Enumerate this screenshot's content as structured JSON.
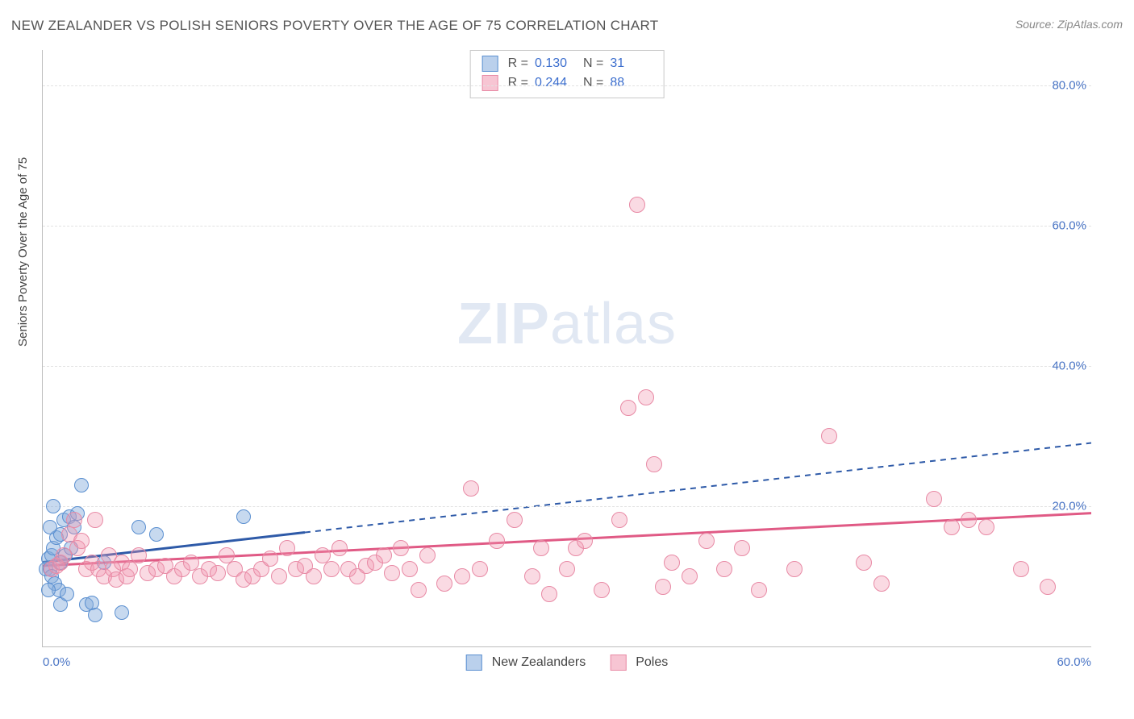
{
  "title": "NEW ZEALANDER VS POLISH SENIORS POVERTY OVER THE AGE OF 75 CORRELATION CHART",
  "source": "Source: ZipAtlas.com",
  "y_axis_label": "Seniors Poverty Over the Age of 75",
  "watermark_bold": "ZIP",
  "watermark_light": "atlas",
  "chart": {
    "type": "scatter",
    "xlim": [
      0,
      60
    ],
    "ylim": [
      0,
      85
    ],
    "background_color": "#ffffff",
    "grid_color": "#e2e2e2",
    "marker_radius_blue": 8,
    "marker_radius_pink": 9,
    "y_ticks": [
      {
        "v": 20,
        "label": "20.0%"
      },
      {
        "v": 40,
        "label": "40.0%"
      },
      {
        "v": 60,
        "label": "60.0%"
      },
      {
        "v": 80,
        "label": "80.0%"
      }
    ],
    "x_ticks": [
      {
        "v": 0,
        "label": "0.0%"
      },
      {
        "v": 60,
        "label": "60.0%"
      }
    ],
    "series": [
      {
        "name": "New Zealanders",
        "color_fill": "rgba(130,170,220,0.45)",
        "color_stroke": "#5a8fd0",
        "line_color": "#2e5aa8",
        "line_solid_until_x": 15,
        "reg": {
          "x1": 0,
          "y1": 12,
          "x2": 60,
          "y2": 29
        },
        "R": "0.130",
        "N": "31",
        "points": [
          [
            0.2,
            11
          ],
          [
            0.3,
            12.5
          ],
          [
            0.5,
            13
          ],
          [
            0.4,
            11
          ],
          [
            0.6,
            14
          ],
          [
            0.8,
            15.5
          ],
          [
            1.0,
            16
          ],
          [
            1.2,
            18
          ],
          [
            1.5,
            18.5
          ],
          [
            0.5,
            10
          ],
          [
            0.7,
            9
          ],
          [
            0.9,
            8
          ],
          [
            1.0,
            12
          ],
          [
            1.3,
            13
          ],
          [
            1.6,
            14
          ],
          [
            2.0,
            19
          ],
          [
            2.2,
            23
          ],
          [
            0.4,
            17
          ],
          [
            0.6,
            20
          ],
          [
            1.8,
            17
          ],
          [
            2.5,
            6
          ],
          [
            2.8,
            6.2
          ],
          [
            3.0,
            4.5
          ],
          [
            4.5,
            4.8
          ],
          [
            3.5,
            12
          ],
          [
            5.5,
            17
          ],
          [
            6.5,
            16
          ],
          [
            11.5,
            18.5
          ],
          [
            1.0,
            6
          ],
          [
            1.4,
            7.5
          ],
          [
            0.3,
            8
          ]
        ]
      },
      {
        "name": "Poles",
        "color_fill": "rgba(240,150,175,0.35)",
        "color_stroke": "#e88aa5",
        "line_color": "#e05a85",
        "line_solid_until_x": 60,
        "reg": {
          "x1": 0,
          "y1": 11.5,
          "x2": 60,
          "y2": 19
        },
        "R": "0.244",
        "N": "88",
        "points": [
          [
            0.5,
            11
          ],
          [
            0.8,
            11.5
          ],
          [
            1.0,
            12
          ],
          [
            1.2,
            13
          ],
          [
            1.5,
            16
          ],
          [
            1.8,
            18
          ],
          [
            2.0,
            14
          ],
          [
            2.2,
            15
          ],
          [
            2.5,
            11
          ],
          [
            2.8,
            12
          ],
          [
            3.0,
            18
          ],
          [
            3.2,
            11
          ],
          [
            3.5,
            10
          ],
          [
            3.8,
            13
          ],
          [
            4.0,
            11
          ],
          [
            4.2,
            9.5
          ],
          [
            4.5,
            12
          ],
          [
            4.8,
            10
          ],
          [
            5.0,
            11
          ],
          [
            5.5,
            13
          ],
          [
            6.0,
            10.5
          ],
          [
            6.5,
            11
          ],
          [
            7.0,
            11.5
          ],
          [
            7.5,
            10
          ],
          [
            8.0,
            11
          ],
          [
            8.5,
            12
          ],
          [
            9.0,
            10
          ],
          [
            9.5,
            11
          ],
          [
            10.0,
            10.5
          ],
          [
            10.5,
            13
          ],
          [
            11.0,
            11
          ],
          [
            11.5,
            9.5
          ],
          [
            12.0,
            10
          ],
          [
            12.5,
            11
          ],
          [
            13.0,
            12.5
          ],
          [
            13.5,
            10
          ],
          [
            14.0,
            14
          ],
          [
            14.5,
            11
          ],
          [
            15.0,
            11.5
          ],
          [
            15.5,
            10
          ],
          [
            16.0,
            13
          ],
          [
            16.5,
            11
          ],
          [
            17.0,
            14
          ],
          [
            17.5,
            11
          ],
          [
            18.0,
            10
          ],
          [
            18.5,
            11.5
          ],
          [
            19.0,
            12
          ],
          [
            19.5,
            13
          ],
          [
            20.0,
            10.5
          ],
          [
            20.5,
            14
          ],
          [
            21.0,
            11
          ],
          [
            21.5,
            8
          ],
          [
            22.0,
            13
          ],
          [
            23.0,
            9
          ],
          [
            24.0,
            10
          ],
          [
            24.5,
            22.5
          ],
          [
            25.0,
            11
          ],
          [
            26.0,
            15
          ],
          [
            27.0,
            18
          ],
          [
            28.0,
            10
          ],
          [
            28.5,
            14
          ],
          [
            29.0,
            7.5
          ],
          [
            30.0,
            11
          ],
          [
            30.5,
            14
          ],
          [
            31.0,
            15
          ],
          [
            32.0,
            8
          ],
          [
            33.0,
            18
          ],
          [
            33.5,
            34
          ],
          [
            34.0,
            63
          ],
          [
            34.5,
            35.5
          ],
          [
            35.0,
            26
          ],
          [
            35.5,
            8.5
          ],
          [
            36.0,
            12
          ],
          [
            37.0,
            10
          ],
          [
            38.0,
            15
          ],
          [
            39.0,
            11
          ],
          [
            40.0,
            14
          ],
          [
            41.0,
            8
          ],
          [
            43.0,
            11
          ],
          [
            45.0,
            30
          ],
          [
            47.0,
            12
          ],
          [
            48.0,
            9
          ],
          [
            51.0,
            21
          ],
          [
            52.0,
            17
          ],
          [
            53.0,
            18
          ],
          [
            54.0,
            17
          ],
          [
            56.0,
            11
          ],
          [
            57.5,
            8.5
          ]
        ]
      }
    ]
  },
  "stats_labels": {
    "R": "R  =",
    "N": "N  ="
  },
  "colors": {
    "title": "#555555",
    "source": "#888888",
    "axis_text": "#444444",
    "tick_text": "#4a75c5",
    "stat_value": "#3d6fce"
  }
}
